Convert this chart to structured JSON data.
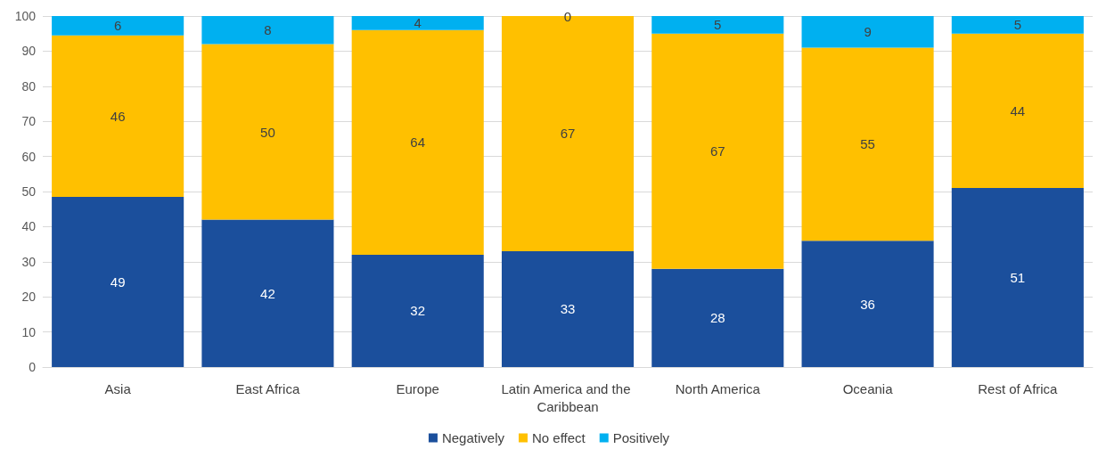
{
  "chart_data": {
    "type": "bar",
    "stacked": true,
    "categories": [
      "Asia",
      "East Africa",
      "Europe",
      "Latin America and the Caribbean",
      "North America",
      "Oceania",
      "Rest of Africa"
    ],
    "series": [
      {
        "name": "Negatively",
        "color": "#1b4f9c",
        "values": [
          48.5,
          42,
          32,
          33,
          28,
          36,
          51
        ],
        "value_labels": [
          "49",
          "42",
          "32",
          "33",
          "28",
          "36",
          "51"
        ]
      },
      {
        "name": "No effect",
        "color": "#ffc000",
        "values": [
          46,
          50,
          64,
          67,
          67,
          55,
          44
        ],
        "value_labels": [
          "46",
          "50",
          "64",
          "67",
          "67",
          "55",
          "44"
        ]
      },
      {
        "name": "Positively",
        "color": "#00b0f0",
        "values": [
          5.5,
          8,
          4,
          0,
          5,
          9,
          5
        ],
        "value_labels": [
          "6",
          "8",
          "4",
          "0",
          "5",
          "9",
          "5"
        ]
      }
    ],
    "ylim": [
      0,
      100
    ],
    "yticks": [
      0,
      10,
      20,
      30,
      40,
      50,
      60,
      70,
      80,
      90,
      100
    ],
    "grid": "y",
    "legend": "bottom"
  }
}
